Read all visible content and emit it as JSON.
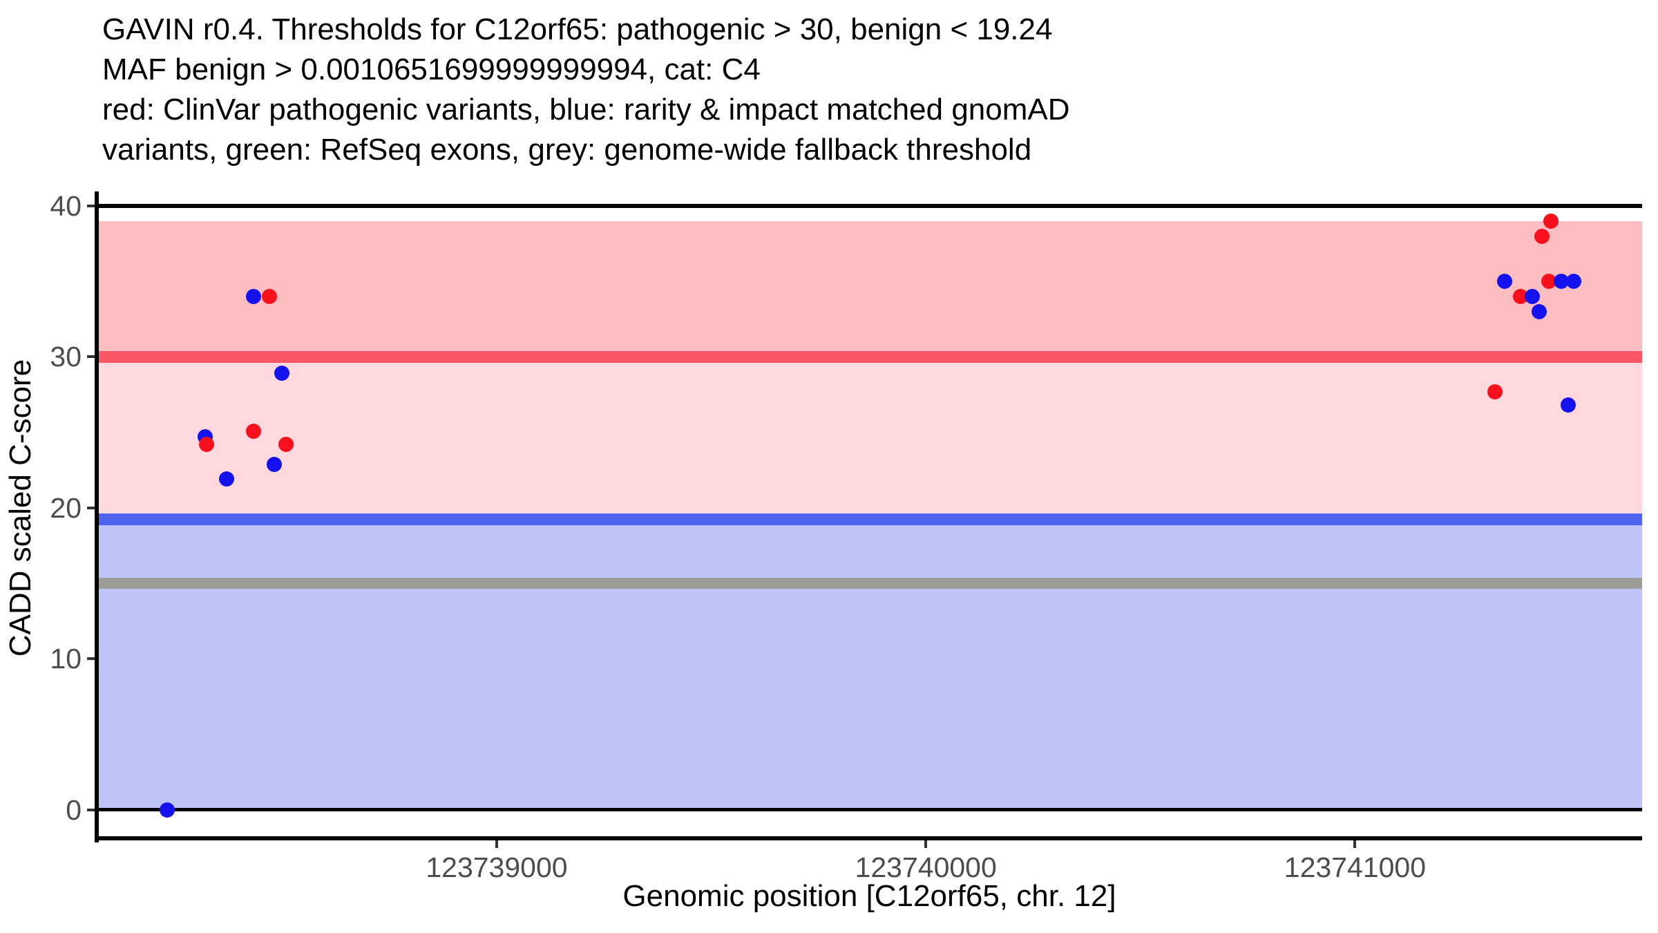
{
  "chart_data": {
    "type": "scatter",
    "title_lines": [
      "GAVIN r0.4. Thresholds for C12orf65: pathogenic > 30, benign < 19.24",
      "MAF benign > 0.0010651699999999994, cat: C4",
      "red: ClinVar pathogenic variants, blue: rarity & impact matched gnomAD",
      "variants, green: RefSeq exons, grey: genome-wide fallback threshold"
    ],
    "xlabel": "Genomic position [C12orf65, chr. 12]",
    "ylabel": "CADD scaled C-score",
    "xlim": [
      123738068,
      123741669
    ],
    "ylim": [
      -1.88,
      40.96
    ],
    "x_ticks": [
      {
        "value": 123739000,
        "label": "123739000"
      },
      {
        "value": 123740000,
        "label": "123740000"
      },
      {
        "value": 123741000,
        "label": "123741000"
      }
    ],
    "y_ticks": [
      {
        "value": 0,
        "label": "0"
      },
      {
        "value": 10,
        "label": "10"
      },
      {
        "value": 20,
        "label": "20"
      },
      {
        "value": 30,
        "label": "30"
      },
      {
        "value": 40,
        "label": "40"
      }
    ],
    "thresholds": {
      "pathogenic": 30,
      "benign": 19.24,
      "genome_wide_fallback": 15
    },
    "bands": [
      {
        "name": "pathogenic-zone",
        "from": 30,
        "to": 39,
        "color": "#fdbdc1"
      },
      {
        "name": "intermediate-zone",
        "from": 19.24,
        "to": 30,
        "color": "#ffd9dd"
      },
      {
        "name": "benign-zone",
        "from": 0,
        "to": 19.24,
        "color": "#bdc4f8"
      }
    ],
    "hlines": [
      {
        "name": "cadd-max-line",
        "y": 40,
        "color": "#000000",
        "width": 6
      },
      {
        "name": "cadd-min-line",
        "y": 0,
        "color": "#000000",
        "width": 5
      },
      {
        "name": "pathogenic-threshold-line",
        "y": 30,
        "color": "#fa5565",
        "width": 17
      },
      {
        "name": "benign-threshold-line",
        "y": 19.24,
        "color": "#4c63ed",
        "width": 17
      },
      {
        "name": "fallback-threshold-line",
        "y": 15,
        "color": "#9d9d97",
        "width": 16
      }
    ],
    "point_colors": {
      "red": "#f8111c",
      "blue": "#1512f0"
    },
    "points": [
      {
        "x": 123738232,
        "y": 0,
        "c": "blue"
      },
      {
        "x": 123738321,
        "y": 24.7,
        "c": "blue"
      },
      {
        "x": 123738324,
        "y": 24.2,
        "c": "red"
      },
      {
        "x": 123738371,
        "y": 21.9,
        "c": "blue"
      },
      {
        "x": 123738433,
        "y": 34,
        "c": "blue"
      },
      {
        "x": 123738470,
        "y": 34,
        "c": "red"
      },
      {
        "x": 123738433,
        "y": 25.1,
        "c": "red"
      },
      {
        "x": 123738509,
        "y": 24.2,
        "c": "red"
      },
      {
        "x": 123738499,
        "y": 28.9,
        "c": "blue"
      },
      {
        "x": 123738482,
        "y": 22.9,
        "c": "blue"
      },
      {
        "x": 123741457,
        "y": 39,
        "c": "red"
      },
      {
        "x": 123741435,
        "y": 38,
        "c": "red"
      },
      {
        "x": 123741349,
        "y": 35,
        "c": "blue"
      },
      {
        "x": 123741452,
        "y": 35,
        "c": "red"
      },
      {
        "x": 123741480,
        "y": 35,
        "c": "blue"
      },
      {
        "x": 123741509,
        "y": 35,
        "c": "blue"
      },
      {
        "x": 123741386,
        "y": 34,
        "c": "red"
      },
      {
        "x": 123741413,
        "y": 34,
        "c": "blue"
      },
      {
        "x": 123741429,
        "y": 33,
        "c": "blue"
      },
      {
        "x": 123741326,
        "y": 27.7,
        "c": "red"
      },
      {
        "x": 123741497,
        "y": 26.8,
        "c": "blue"
      }
    ],
    "axis_style": {
      "axis_line_color": "#000000",
      "tick_mark_color": "#333333",
      "tick_label_color": "#4d4d4d",
      "background": "#ffffff"
    }
  }
}
